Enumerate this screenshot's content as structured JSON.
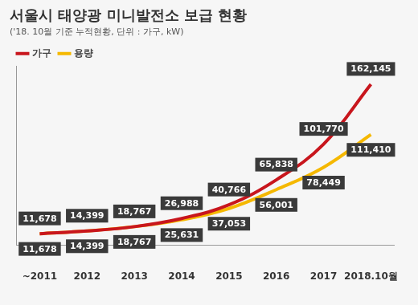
{
  "chart_data": {
    "type": "line",
    "title": "서울시 태양광 미니발전소 보급 현황",
    "subtitle": "('18. 10월 기준 누적현황, 단위 : 가구, kW)",
    "categories": [
      "~2011",
      "2012",
      "2013",
      "2014",
      "2015",
      "2016",
      "2017",
      "2018.10월"
    ],
    "series": [
      {
        "name": "가구",
        "color": "#c8161d",
        "values": [
          11678,
          14399,
          18767,
          26988,
          40766,
          65838,
          101770,
          162145
        ],
        "value_labels": [
          "11,678",
          "14,399",
          "18,767",
          "26,988",
          "40,766",
          "65,838",
          "101,770",
          "162,145"
        ]
      },
      {
        "name": "용량",
        "color": "#f5b800",
        "values": [
          11678,
          14399,
          18767,
          25631,
          37053,
          56001,
          78449,
          111410
        ],
        "value_labels": [
          "11,678",
          "14,399",
          "18,767",
          "25,631",
          "37,053",
          "56,001",
          "78,449",
          "111,410"
        ]
      }
    ],
    "ylim": [
      0,
      180000
    ],
    "grid": false,
    "legend": "top-left",
    "data_labels": true,
    "tick_labels": "x",
    "marker": "none",
    "line_style": "solid"
  }
}
